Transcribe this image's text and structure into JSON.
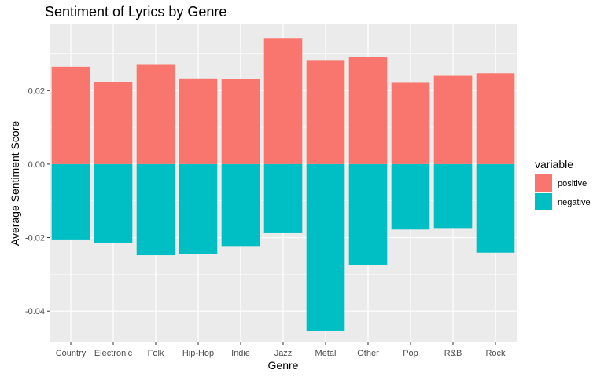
{
  "chart_data": {
    "type": "bar",
    "title": "Sentiment of Lyrics by Genre",
    "xlabel": "Genre",
    "ylabel": "Average Sentiment Score",
    "categories": [
      "Country",
      "Electronic",
      "Folk",
      "Hip-Hop",
      "Indie",
      "Jazz",
      "Metal",
      "Other",
      "Pop",
      "R&B",
      "Rock"
    ],
    "series": [
      {
        "name": "positive",
        "color": "#F8766D",
        "values": [
          0.0265,
          0.0222,
          0.027,
          0.0233,
          0.0232,
          0.0341,
          0.0281,
          0.0292,
          0.0221,
          0.024,
          0.0247
        ]
      },
      {
        "name": "negative",
        "color": "#00BFC4",
        "values": [
          -0.0205,
          -0.0215,
          -0.0248,
          -0.0245,
          -0.0223,
          -0.0188,
          -0.0455,
          -0.0275,
          -0.0178,
          -0.0174,
          -0.0241
        ]
      }
    ],
    "ylim": [
      -0.0485,
      0.038
    ],
    "yticks": [
      0.02,
      0.0,
      -0.02,
      -0.04
    ],
    "ytick_labels": [
      "0.02",
      "0.00",
      "-0.02",
      "-0.04"
    ],
    "legend": {
      "title": "variable",
      "position": "right"
    },
    "panel_background": "#EBEBEB",
    "grid": true
  }
}
